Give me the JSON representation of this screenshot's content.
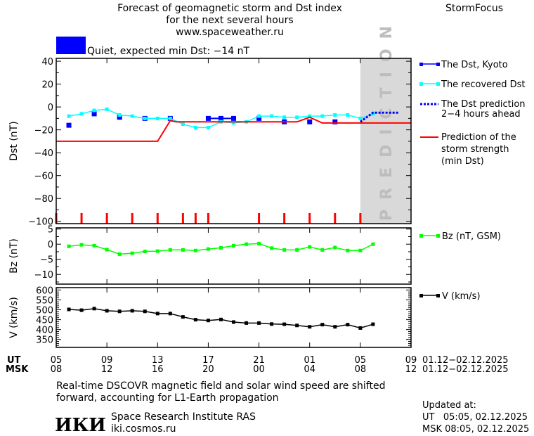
{
  "header": {
    "title_line1": "Forecast of geomagnetic storm and Dst index",
    "title_line2": "for the next several hours",
    "website": "www.spaceweather.ru",
    "product": "StormFocus",
    "status_text": "Quiet, expected min Dst: −14 nT",
    "status_color": "#0000ff"
  },
  "prediction_label": "PREDICTION",
  "footer": {
    "note_line1": "Real-time DSCOVR magnetic field and solar wind speed are shifted",
    "note_line2": "forward, accounting for L1-Earth propagation",
    "institute": "Space Research Institute RAS",
    "institute_url": "iki.cosmos.ru",
    "logo_text": "ИКИ",
    "updated_label": "Updated at:",
    "updated_ut": "UT   05:05, 02.12.2025",
    "updated_msk": "MSK 08:05, 02.12.2025"
  },
  "time_axis": {
    "ut_label": "UT",
    "msk_label": "MSK",
    "ut_ticks": [
      "05",
      "09",
      "13",
      "17",
      "21",
      "01",
      "05",
      "09"
    ],
    "msk_ticks": [
      "08",
      "12",
      "16",
      "20",
      "00",
      "04",
      "08",
      "12"
    ],
    "ut_range": "01.12−02.12.2025",
    "msk_range": "01.12−02.12.2025"
  },
  "chart_data": [
    {
      "type": "line",
      "panel": "dst",
      "ylabel": "Dst (nT)",
      "ylim": [
        -102,
        42.5
      ],
      "yticks": [
        40,
        20,
        0,
        -20,
        -40,
        -60,
        -80,
        -100
      ],
      "x_unit": "hours since 05 UT 01.12.2025",
      "xlim": [
        0,
        28
      ],
      "prediction_region": [
        24,
        28
      ],
      "series": [
        {
          "name": "The Dst, Kyoto",
          "color": "#0000ff",
          "marker": "square",
          "x": [
            1,
            3,
            5,
            7,
            9,
            12,
            13,
            14,
            16,
            18,
            20,
            22
          ],
          "values": [
            -16,
            -6,
            -9,
            -10,
            -10,
            -10,
            -10,
            -10,
            -10,
            -13,
            -13,
            -13
          ],
          "connected": [
            [
              12,
              13,
              14
            ]
          ]
        },
        {
          "name": "The recovered Dst",
          "color": "#00ffff",
          "marker": "square",
          "x": [
            1,
            2,
            3,
            4,
            5,
            6,
            7,
            8,
            9,
            10,
            11,
            12,
            13,
            14,
            15,
            16,
            17,
            18,
            19,
            20,
            21,
            22,
            23,
            24,
            25
          ],
          "values": [
            -8,
            -6,
            -3,
            -2,
            -7,
            -8,
            -10,
            -10,
            -10,
            -15,
            -18,
            -18,
            -13,
            -14,
            -13,
            -8,
            -8,
            -9,
            -9,
            -8,
            -8,
            -7,
            -7,
            -10,
            -6
          ]
        },
        {
          "name": "The Dst prediction 2−4 hours ahead",
          "color": "#0000ff",
          "style": "dotted",
          "x": [
            24,
            25,
            27
          ],
          "values": [
            -13,
            -5,
            -5
          ]
        },
        {
          "name": "Prediction of the storm strength (min Dst)",
          "color": "#ff0000",
          "style": "solid",
          "x": [
            0,
            8,
            9,
            9.5,
            19,
            20,
            21,
            28
          ],
          "values": [
            -30,
            -30,
            -12,
            -13,
            -13,
            -9,
            -14,
            -14
          ]
        }
      ],
      "event_marks": {
        "color": "#ff0000",
        "x": [
          0,
          2,
          4,
          6,
          8,
          10,
          11,
          12,
          16,
          18,
          20,
          22,
          24
        ]
      }
    },
    {
      "type": "line",
      "panel": "bz",
      "ylabel": "Bz (nT)",
      "ylim": [
        -13.2,
        5.4
      ],
      "yticks": [
        5,
        0,
        -5,
        -10
      ],
      "xlim": [
        0,
        28
      ],
      "series": [
        {
          "name": "Bz (nT, GSM)",
          "color": "#00ff00",
          "marker": "square",
          "x": [
            1,
            2,
            3,
            4,
            5,
            6,
            7,
            8,
            9,
            10,
            11,
            12,
            13,
            14,
            15,
            16,
            17,
            18,
            19,
            20,
            21,
            22,
            23,
            24,
            25
          ],
          "values": [
            -0.7,
            -0.2,
            -0.5,
            -1.8,
            -3.3,
            -3.0,
            -2.4,
            -2.3,
            -1.9,
            -1.9,
            -2.1,
            -1.6,
            -1.2,
            -0.5,
            0.0,
            0.2,
            -1.3,
            -1.9,
            -1.9,
            -0.9,
            -1.9,
            -1.1,
            -2.1,
            -2.1,
            0.0
          ]
        }
      ]
    },
    {
      "type": "line",
      "panel": "v",
      "ylabel": "V (km/s)",
      "ylim": [
        310,
        612
      ],
      "yticks": [
        600,
        550,
        500,
        450,
        400,
        350
      ],
      "xlim": [
        0,
        28
      ],
      "series": [
        {
          "name": "V (km/s)",
          "color": "#000000",
          "marker": "square",
          "x": [
            1,
            2,
            3,
            4,
            5,
            6,
            7,
            8,
            9,
            10,
            11,
            12,
            13,
            14,
            15,
            16,
            17,
            18,
            19,
            20,
            21,
            22,
            23,
            24,
            25
          ],
          "values": [
            502,
            498,
            506,
            495,
            492,
            495,
            492,
            481,
            481,
            464,
            450,
            446,
            451,
            438,
            433,
            433,
            428,
            427,
            421,
            414,
            425,
            414,
            425,
            408,
            427
          ]
        }
      ]
    }
  ]
}
